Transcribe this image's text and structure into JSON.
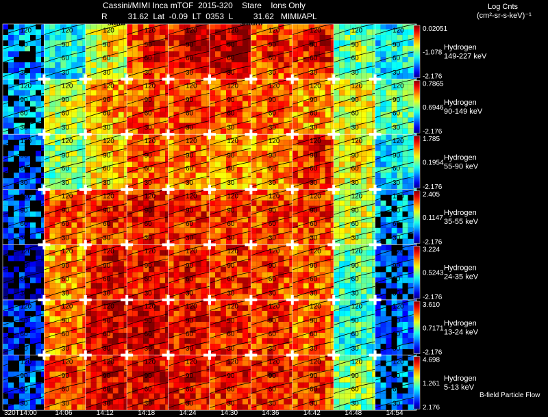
{
  "header": {
    "title": "Cassini/MIMI Inca mTOF  2015-320    Stare    Ions Only",
    "subtitle": "R         31.62  Lat  -0.09  LT  0353  L         31.62   MIMI/APL",
    "overlay_left": "satur",
    "overlay_mid": "saturn"
  },
  "legend": {
    "title": "Log Cnts",
    "units": "(cm²-sr-s-keV)⁻¹",
    "bfield_note": "B-field Particle Flow"
  },
  "chart_data": {
    "type": "heatmap",
    "title": "Cassini/MIMI Inca mTOF 2015-320 Stare Ions Only",
    "x_ticks": [
      "320T14:00",
      "14:06",
      "14:12",
      "14:18",
      "14:24",
      "14:30",
      "14:36",
      "14:42",
      "14:48",
      "14:54"
    ],
    "contour_labels": [
      "120",
      "90",
      "60",
      "30"
    ],
    "rows": [
      {
        "species": "Hydrogen",
        "energy": "149-227 keV",
        "max": "0.02051",
        "mid": "-1.078",
        "min": "-2.176",
        "intensity": [
          0.25,
          0.35,
          0.55,
          0.8,
          0.85,
          0.9,
          0.78,
          0.82,
          0.45,
          0.35
        ]
      },
      {
        "species": "Hydrogen",
        "energy": "90-149 keV",
        "max": "0.7865",
        "mid": "0.6946",
        "min": "-2.176",
        "intensity": [
          0.3,
          0.55,
          0.7,
          0.78,
          0.8,
          0.78,
          0.75,
          0.7,
          0.6,
          0.45
        ]
      },
      {
        "species": "Hydrogen",
        "energy": "55-90 keV",
        "max": "1.785",
        "mid": "0.1954",
        "min": "-2.176",
        "intensity": [
          0.2,
          0.5,
          0.65,
          0.75,
          0.72,
          0.7,
          0.72,
          0.82,
          0.6,
          0.35
        ]
      },
      {
        "species": "Hydrogen",
        "energy": "35-55 keV",
        "max": "2.405",
        "mid": "0.1147",
        "min": "-2.176",
        "intensity": [
          0.2,
          0.78,
          0.82,
          0.84,
          0.82,
          0.8,
          0.8,
          0.8,
          0.55,
          0.3
        ]
      },
      {
        "species": "Hydrogen",
        "energy": "24-35 keV",
        "max": "3.224",
        "mid": "0.5243",
        "min": "-2.176",
        "intensity": [
          0.1,
          0.7,
          0.85,
          0.85,
          0.83,
          0.82,
          0.8,
          0.76,
          0.45,
          0.2
        ]
      },
      {
        "species": "Hydrogen",
        "energy": "13-24 keV",
        "max": "3.610",
        "mid": "0.7171",
        "min": "-2.176",
        "intensity": [
          0.15,
          0.72,
          0.88,
          0.9,
          0.86,
          0.84,
          0.82,
          0.75,
          0.4,
          0.2
        ]
      },
      {
        "species": "Hydrogen",
        "energy": "5-13 keV",
        "max": "4.698",
        "mid": "1.261",
        "min": "2.176",
        "intensity": [
          0.2,
          0.8,
          0.88,
          0.88,
          0.86,
          0.84,
          0.84,
          0.8,
          0.5,
          0.25
        ]
      }
    ]
  }
}
